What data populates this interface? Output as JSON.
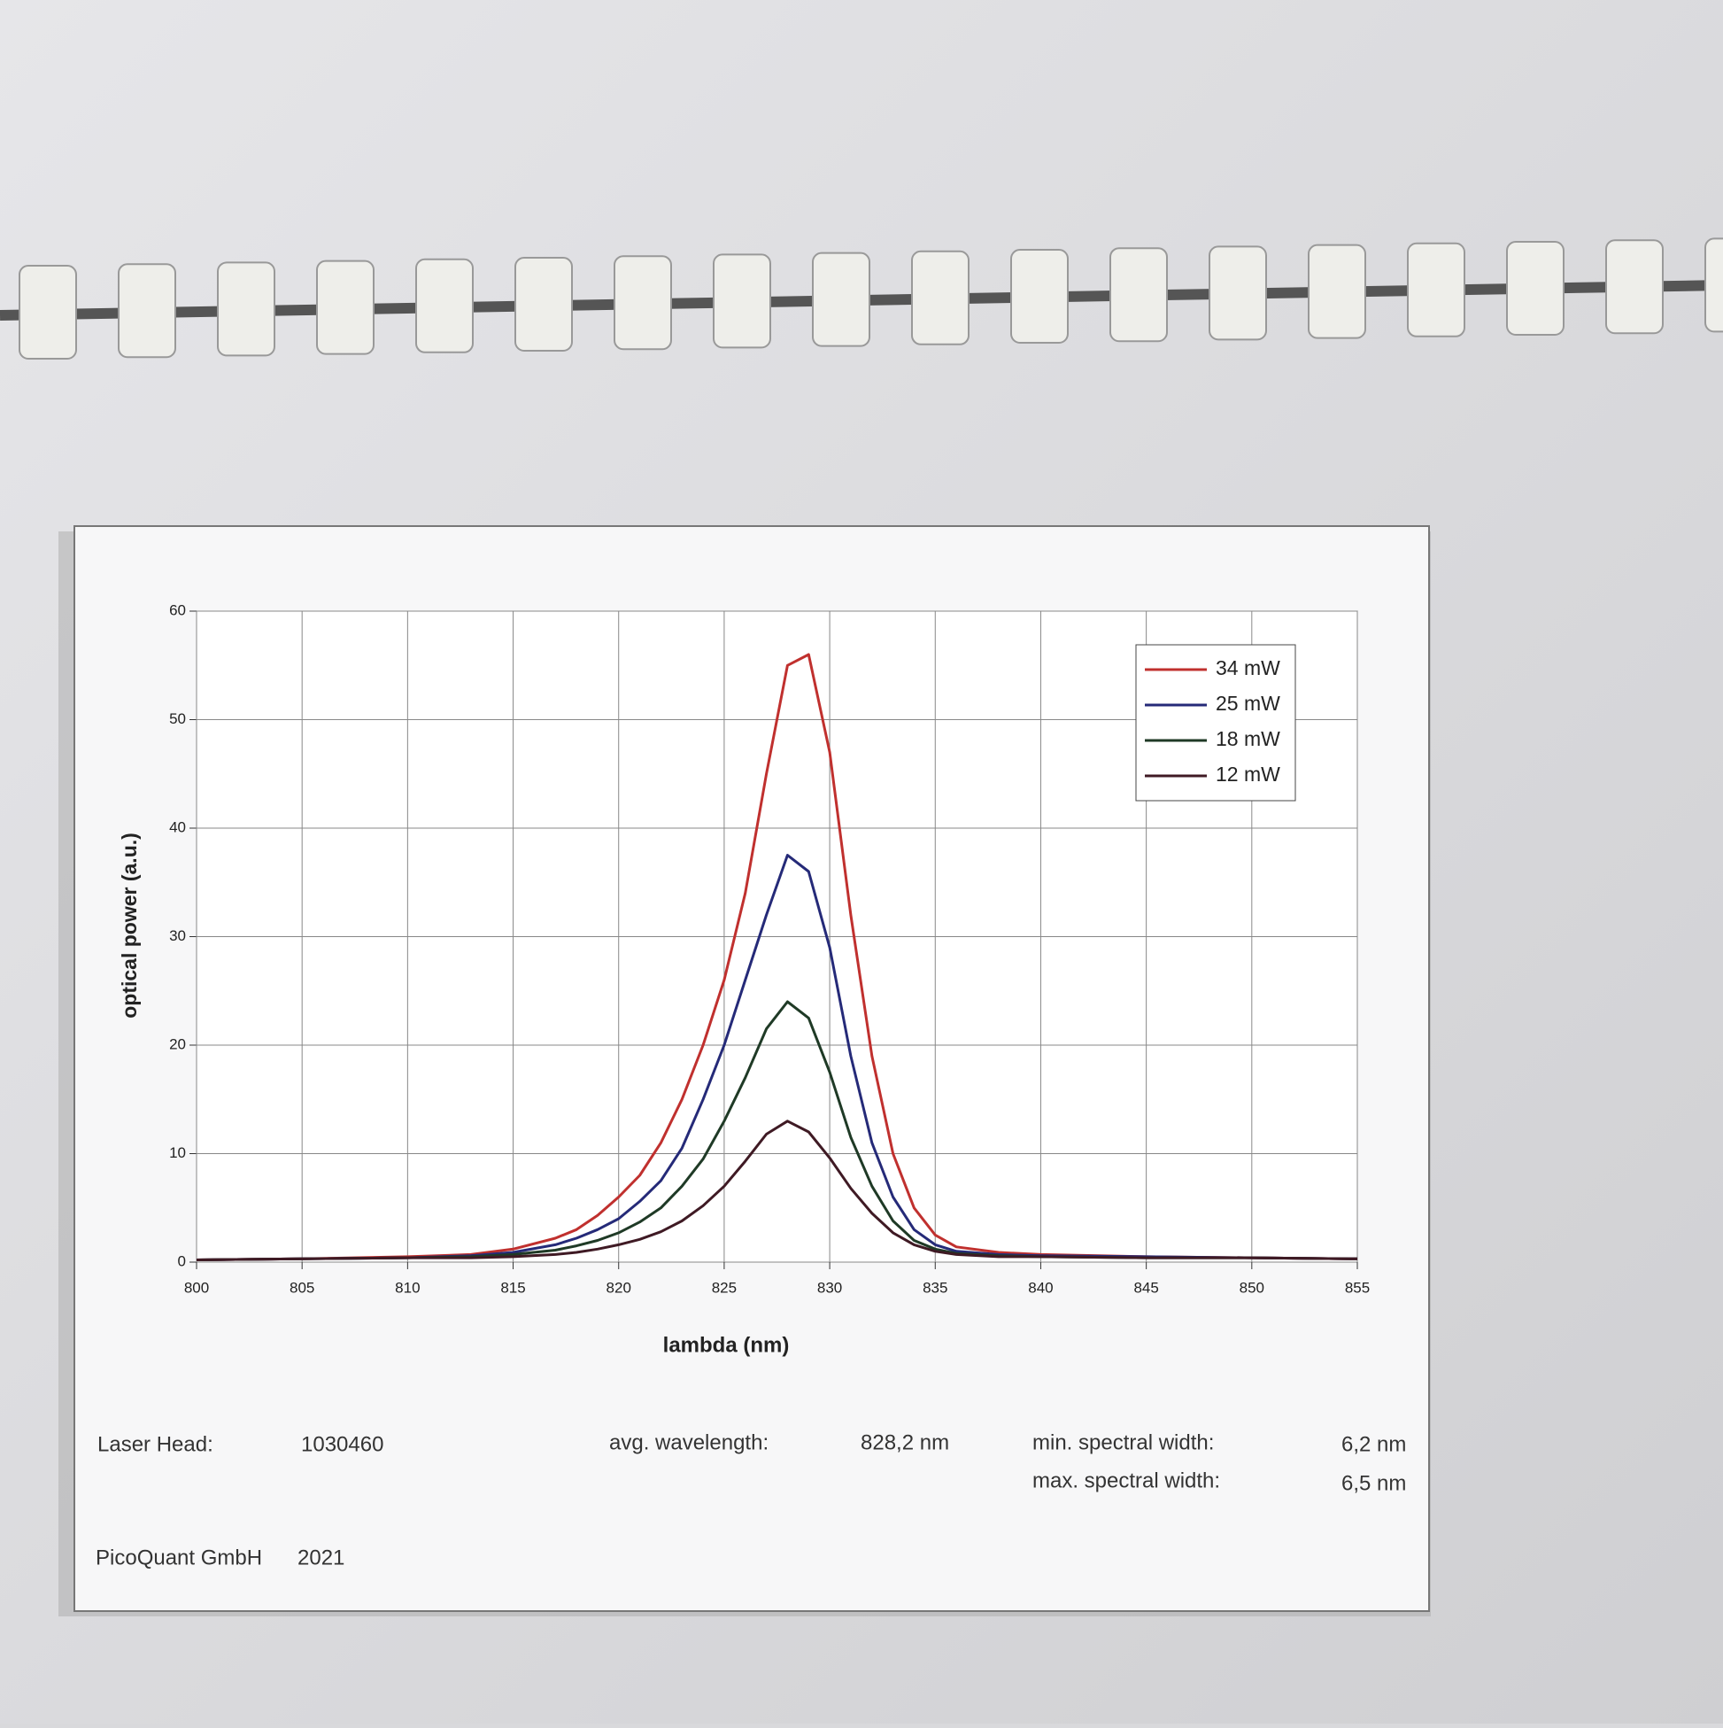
{
  "chart_data": {
    "type": "line",
    "x_label": "lambda (nm)",
    "y_label": "optical power (a.u.)",
    "x": [
      800,
      805,
      810,
      813,
      815,
      817,
      818,
      819,
      820,
      821,
      822,
      823,
      824,
      825,
      826,
      827,
      828,
      829,
      830,
      831,
      832,
      833,
      834,
      835,
      836,
      838,
      840,
      845,
      850,
      855
    ],
    "series": [
      {
        "name": "34 mW",
        "color": "#c0302e",
        "values": [
          0.2,
          0.3,
          0.5,
          0.7,
          1.2,
          2.2,
          3,
          4.3,
          6,
          8,
          11,
          15,
          20,
          26,
          34,
          45,
          55,
          56,
          47,
          32,
          19,
          10,
          5,
          2.5,
          1.4,
          0.9,
          0.7,
          0.5,
          0.4,
          0.3
        ]
      },
      {
        "name": "25 mW",
        "color": "#252a78",
        "values": [
          0.2,
          0.3,
          0.4,
          0.6,
          0.9,
          1.6,
          2.2,
          3,
          4,
          5.6,
          7.5,
          10.5,
          15,
          20,
          26,
          32,
          37.5,
          36,
          29,
          19,
          11,
          6,
          3,
          1.6,
          1,
          0.7,
          0.6,
          0.5,
          0.4,
          0.3
        ]
      },
      {
        "name": "18 mW",
        "color": "#1f3a26",
        "values": [
          0.2,
          0.3,
          0.4,
          0.5,
          0.7,
          1.1,
          1.5,
          2,
          2.7,
          3.7,
          5,
          7,
          9.5,
          13,
          17,
          21.5,
          24,
          22.5,
          17.5,
          11.5,
          7,
          3.8,
          2,
          1.2,
          0.8,
          0.6,
          0.5,
          0.4,
          0.4,
          0.3
        ]
      },
      {
        "name": "12 mW",
        "color": "#3f1a24",
        "values": [
          0.2,
          0.3,
          0.4,
          0.4,
          0.5,
          0.7,
          0.9,
          1.2,
          1.6,
          2.1,
          2.8,
          3.8,
          5.2,
          7,
          9.3,
          11.8,
          13,
          12,
          9.6,
          6.8,
          4.5,
          2.7,
          1.6,
          1,
          0.7,
          0.5,
          0.5,
          0.4,
          0.4,
          0.3
        ]
      }
    ],
    "xlim": [
      800,
      855
    ],
    "xticks": [
      800,
      805,
      810,
      815,
      820,
      825,
      830,
      835,
      840,
      845,
      850,
      855
    ],
    "ylim": [
      0,
      60
    ],
    "yticks": [
      0,
      10,
      20,
      30,
      40,
      50,
      60
    ],
    "grid": true,
    "legend": "top-right"
  },
  "footer": {
    "laser_head_label": "Laser Head:",
    "laser_head": "1030460",
    "avg_wavelength_label": "avg. wavelength:",
    "avg_wavelength": "828,2 nm",
    "min_width_label": "min. spectral width:",
    "min_width": "6,2 nm",
    "max_width_label": "max. spectral width:",
    "max_width": "6,5 nm",
    "company": "PicoQuant GmbH",
    "year": "2021"
  }
}
